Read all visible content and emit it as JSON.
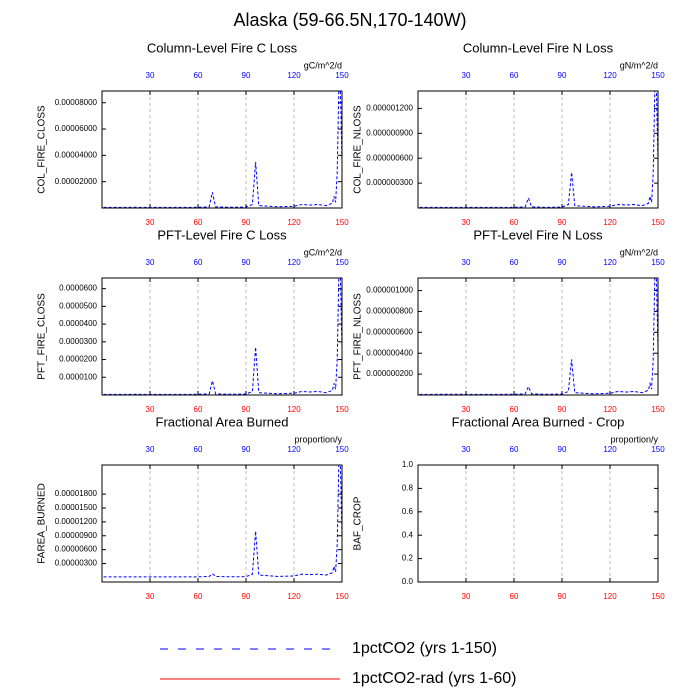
{
  "title": "Alaska (59-66.5N,170-140W)",
  "legend": [
    {
      "name": "1pctCO2 (yrs 1-150)",
      "color": "#0000ff",
      "dash": "dashed"
    },
    {
      "name": "1pctCO2-rad (yrs 1-60)",
      "color": "#ff0000",
      "dash": "solid"
    }
  ],
  "chart_data": [
    {
      "type": "line",
      "title": "Column-Level Fire C Loss",
      "y_label": "COL_FIRE_CLOSS",
      "units": "gC/m^2/d",
      "xlim": [
        0,
        150
      ],
      "xticks": [
        30,
        60,
        90,
        120,
        150
      ],
      "x2ticks": [
        30,
        60,
        90,
        120,
        150
      ],
      "xtick_color": "#ff0000",
      "x2tick_color": "#0000ff",
      "grid": true,
      "ylim": [
        0,
        8.89e-05
      ],
      "yticks": [
        {
          "value": 2e-05,
          "label": "0.00002000"
        },
        {
          "value": 4e-05,
          "label": "0.00004000"
        },
        {
          "value": 6e-05,
          "label": "0.00006000"
        },
        {
          "value": 8e-05,
          "label": "0.00008000"
        }
      ],
      "series": [
        {
          "color": "#0000ff",
          "dash": "dashed",
          "x": [
            1,
            20,
            40,
            60,
            67,
            69,
            71,
            80,
            90,
            94,
            96,
            98,
            110,
            120,
            125,
            130,
            135,
            140,
            144,
            145,
            146,
            147,
            148,
            149,
            150
          ],
          "values": [
            4.4e-07,
            5.3e-07,
            4.4e-07,
            5.3e-07,
            8.9e-07,
            1.2e-05,
            8.9e-07,
            5.3e-07,
            7.1e-07,
            2.7e-06,
            3.5e-05,
            1.8e-06,
            8.9e-07,
            1.3e-06,
            2.7e-06,
            2.2e-06,
            2.7e-06,
            1.8e-06,
            3.6e-06,
            8.9e-06,
            4.4e-06,
            2.7e-05,
            8.89e-05,
            8.89e-05,
            3.6e-05
          ]
        }
      ]
    },
    {
      "type": "line",
      "title": "Column-Level Fire N Loss",
      "y_label": "COL_FIRE_NLOSS",
      "units": "gN/m^2/d",
      "xlim": [
        0,
        150
      ],
      "xticks": [
        30,
        60,
        90,
        120,
        150
      ],
      "x2ticks": [
        30,
        60,
        90,
        120,
        150
      ],
      "xtick_color": "#ff0000",
      "x2tick_color": "#0000ff",
      "grid": true,
      "ylim": [
        0,
        1.41e-06
      ],
      "yticks": [
        {
          "value": 3e-07,
          "label": "0.000000300"
        },
        {
          "value": 6e-07,
          "label": "0.000000600"
        },
        {
          "value": 9e-07,
          "label": "0.000000900"
        },
        {
          "value": 1.2e-06,
          "label": "0.000001200"
        }
      ],
      "series": [
        {
          "color": "#0000ff",
          "dash": "dashed",
          "x": [
            1,
            20,
            40,
            60,
            67,
            69,
            71,
            80,
            90,
            94,
            96,
            98,
            110,
            120,
            125,
            130,
            135,
            140,
            144,
            145,
            146,
            147,
            148,
            149,
            150
          ],
          "values": [
            7e-09,
            8e-09,
            7e-09,
            8e-09,
            1.4e-08,
            1.2e-07,
            1.4e-08,
            8e-09,
            1.1e-08,
            4.2e-08,
            4.3e-07,
            2.8e-08,
            1.4e-08,
            2.1e-08,
            4.2e-08,
            3.5e-08,
            4.2e-08,
            2.8e-08,
            5.6e-08,
            1.4e-07,
            7e-08,
            4.2e-07,
            1.41e-06,
            1.41e-06,
            5.6e-07
          ]
        }
      ]
    },
    {
      "type": "line",
      "title": "PFT-Level Fire C Loss",
      "y_label": "PFT_FIRE_CLOSS",
      "units": "gC/m^2/d",
      "xlim": [
        0,
        150
      ],
      "xticks": [
        30,
        60,
        90,
        120,
        150
      ],
      "x2ticks": [
        30,
        60,
        90,
        120,
        150
      ],
      "xtick_color": "#ff0000",
      "x2tick_color": "#0000ff",
      "grid": true,
      "ylim": [
        0,
        6.6e-05
      ],
      "yticks": [
        {
          "value": 1e-05,
          "label": "0.0000100"
        },
        {
          "value": 2e-05,
          "label": "0.0000200"
        },
        {
          "value": 3e-05,
          "label": "0.0000300"
        },
        {
          "value": 4e-05,
          "label": "0.0000400"
        },
        {
          "value": 5e-05,
          "label": "0.0000500"
        },
        {
          "value": 6e-05,
          "label": "0.0000600"
        }
      ],
      "series": [
        {
          "color": "#0000ff",
          "dash": "dashed",
          "x": [
            1,
            20,
            40,
            60,
            67,
            69,
            71,
            80,
            90,
            94,
            96,
            98,
            110,
            120,
            125,
            130,
            135,
            140,
            144,
            145,
            146,
            147,
            148,
            149,
            150
          ],
          "values": [
            3.3e-07,
            4e-07,
            3.3e-07,
            4e-07,
            6.6e-07,
            8e-06,
            6.6e-07,
            4e-07,
            5.3e-07,
            2e-06,
            2.7e-05,
            1.3e-06,
            6.6e-07,
            1e-06,
            2e-06,
            1.7e-06,
            2e-06,
            1.3e-06,
            2.6e-06,
            6.6e-06,
            3.3e-06,
            2e-05,
            6.6e-05,
            6.6e-05,
            2.6e-05
          ]
        }
      ]
    },
    {
      "type": "line",
      "title": "PFT-Level Fire N Loss",
      "y_label": "PFT_FIRE_NLOSS",
      "units": "gN/m^2/d",
      "xlim": [
        0,
        150
      ],
      "xticks": [
        30,
        60,
        90,
        120,
        150
      ],
      "x2ticks": [
        30,
        60,
        90,
        120,
        150
      ],
      "xtick_color": "#ff0000",
      "x2tick_color": "#0000ff",
      "grid": true,
      "ylim": [
        0,
        1.12e-06
      ],
      "yticks": [
        {
          "value": 2e-07,
          "label": "0.000000200"
        },
        {
          "value": 4e-07,
          "label": "0.000000400"
        },
        {
          "value": 6e-07,
          "label": "0.000000600"
        },
        {
          "value": 8e-07,
          "label": "0.000000800"
        },
        {
          "value": 1e-06,
          "label": "0.000001000"
        }
      ],
      "series": [
        {
          "color": "#0000ff",
          "dash": "dashed",
          "x": [
            1,
            20,
            40,
            60,
            67,
            69,
            71,
            80,
            90,
            94,
            96,
            98,
            110,
            120,
            125,
            130,
            135,
            140,
            144,
            145,
            146,
            147,
            148,
            149,
            150
          ],
          "values": [
            6e-09,
            7e-09,
            6e-09,
            7e-09,
            1.1e-08,
            8e-08,
            1.1e-08,
            7e-09,
            9e-09,
            3.4e-08,
            3.4e-07,
            2.2e-08,
            1.1e-08,
            1.7e-08,
            3.4e-08,
            2.8e-08,
            3.4e-08,
            2.2e-08,
            4.5e-08,
            1.1e-07,
            5.6e-08,
            3.4e-07,
            1.12e-06,
            1.12e-06,
            4.5e-07
          ]
        }
      ]
    },
    {
      "type": "line",
      "title": "Fractional Area Burned",
      "y_label": "FAREA_BURNED",
      "units": "proportion/y",
      "xlim": [
        0,
        150
      ],
      "xticks": [
        30,
        60,
        90,
        120,
        150
      ],
      "x2ticks": [
        30,
        60,
        90,
        120,
        150
      ],
      "xtick_color": "#ff0000",
      "x2tick_color": "#0000ff",
      "grid": true,
      "ylim": [
        -1e-06,
        2.43e-05
      ],
      "yticks": [
        {
          "value": 3e-06,
          "label": "0.00000300"
        },
        {
          "value": 6e-06,
          "label": "0.00000600"
        },
        {
          "value": 9e-06,
          "label": "0.00000900"
        },
        {
          "value": 1.2e-05,
          "label": "0.00001200"
        },
        {
          "value": 1.5e-05,
          "label": "0.00001500"
        },
        {
          "value": 1.8e-05,
          "label": "0.00001800"
        }
      ],
      "series": [
        {
          "color": "#0000ff",
          "dash": "dashed",
          "x": [
            1,
            20,
            40,
            60,
            67,
            69,
            71,
            80,
            90,
            94,
            96,
            98,
            110,
            120,
            125,
            130,
            135,
            140,
            144,
            145,
            146,
            147,
            148,
            149,
            150
          ],
          "values": [
            1e-07,
            1.2e-07,
            1e-07,
            1.2e-07,
            2e-07,
            8e-07,
            2e-07,
            1.2e-07,
            1.6e-07,
            7e-07,
            1e-05,
            5e-07,
            2e-07,
            3e-07,
            7e-07,
            6e-07,
            7e-07,
            5e-07,
            1e-06,
            2.4e-06,
            1.2e-06,
            7e-06,
            2.43e-05,
            2.43e-05,
            9e-06
          ]
        }
      ]
    },
    {
      "type": "line",
      "title": "Fractional Area Burned - Crop",
      "y_label": "BAF_CROP",
      "units": "proportion/y",
      "xlim": [
        0,
        150
      ],
      "xticks": [
        30,
        60,
        90,
        120,
        150
      ],
      "x2ticks": [
        30,
        60,
        90,
        120,
        150
      ],
      "xtick_color": "#ff0000",
      "x2tick_color": "#0000ff",
      "grid": true,
      "ylim": [
        0,
        1
      ],
      "yticks": [
        {
          "value": 0,
          "label": "0.0"
        },
        {
          "value": 0.2,
          "label": "0.2"
        },
        {
          "value": 0.4,
          "label": "0.4"
        },
        {
          "value": 0.6,
          "label": "0.6"
        },
        {
          "value": 0.8,
          "label": "0.8"
        },
        {
          "value": 1,
          "label": "1.0"
        }
      ]
    }
  ]
}
